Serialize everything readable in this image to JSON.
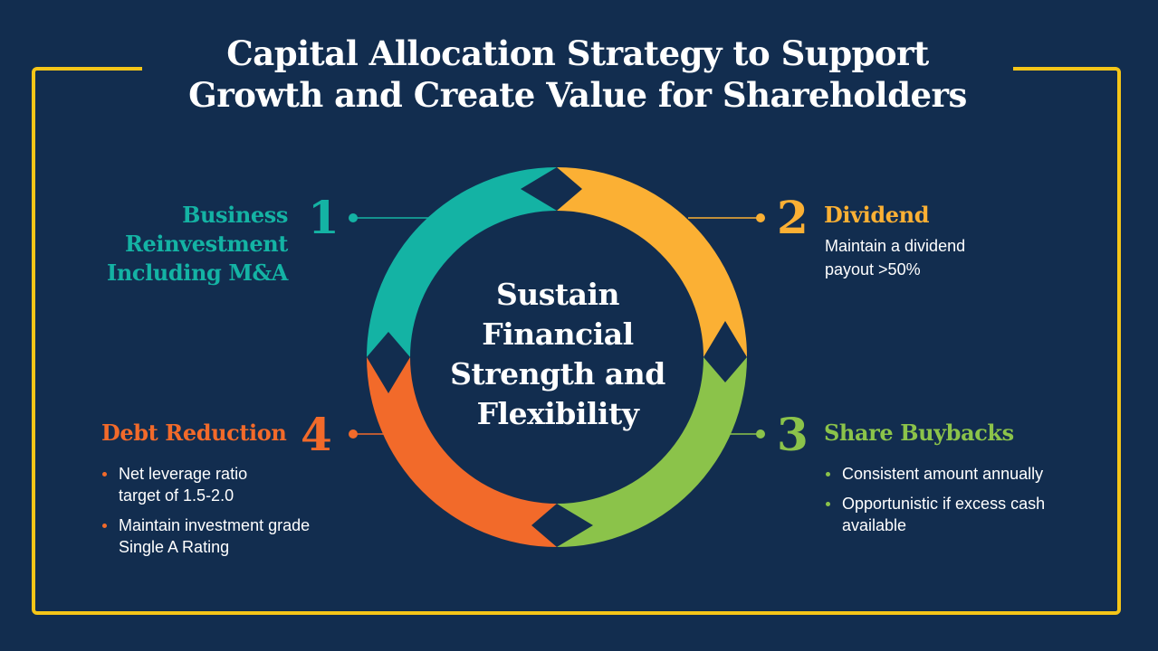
{
  "title": {
    "line1": "Capital Allocation Strategy to Support",
    "line2": "Growth and  Create Value for Shareholders"
  },
  "center": {
    "line1": "Sustain",
    "line2": "Financial",
    "line3": "Strength and",
    "line4": "Flexibility"
  },
  "colors": {
    "background": "#122d4f",
    "frame": "#f5c518",
    "teal": "#14b3a4",
    "yellow": "#fbb034",
    "green": "#8bc34a",
    "orange": "#f26a2a"
  },
  "items": [
    {
      "number": "1",
      "heading": [
        "Business",
        "Reinvestment",
        "Including M&A"
      ]
    },
    {
      "number": "2",
      "heading": "Dividend",
      "text": [
        "Maintain a dividend",
        "payout >50%"
      ]
    },
    {
      "number": "3",
      "heading": "Share Buybacks",
      "bullets": [
        "Consistent amount annually",
        "Opportunistic if excess cash available"
      ]
    },
    {
      "number": "4",
      "heading": "Debt Reduction",
      "bullets": [
        "Net leverage ratio target of 1.5-2.0",
        "Maintain investment grade Single A Rating"
      ]
    }
  ]
}
